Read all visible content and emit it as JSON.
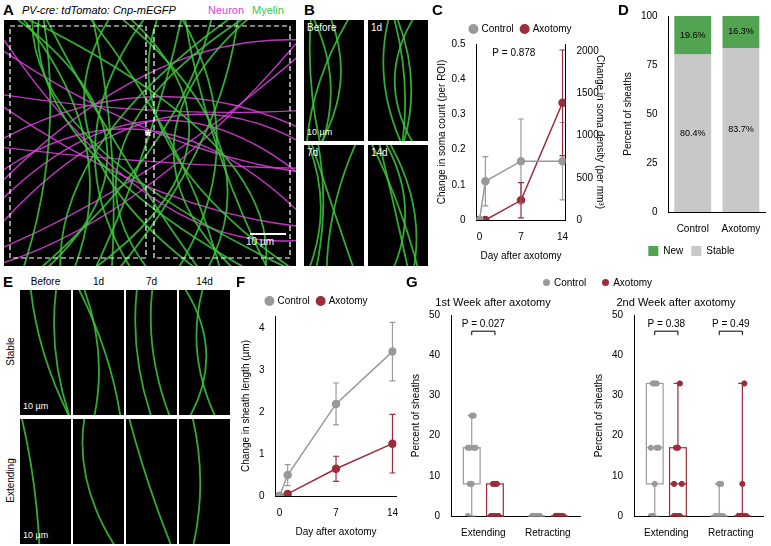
{
  "image_panels": [
    {
      "letter": "A",
      "title": "PV-cre: tdTomato: Cnp-mEGFP",
      "channels": [
        {
          "name": "Neuron",
          "color": "#e040e0"
        },
        {
          "name": "Myelin",
          "color": "#3cc83c"
        }
      ],
      "annotation": "*",
      "scale_bar": "10 µm"
    },
    {
      "letter": "B",
      "frames": [
        "Before",
        "1d",
        "7d",
        "14d"
      ],
      "scale_bar": "10 µm"
    },
    {
      "letter": "E",
      "columns": [
        "Before",
        "1d",
        "7d",
        "14d"
      ],
      "rows": [
        "Stable",
        "Extending"
      ],
      "scale_bar": "10 µm"
    }
  ],
  "chart_data": [
    {
      "letter": "C",
      "type": "line",
      "x": [
        0,
        1,
        7,
        14
      ],
      "xlim": [
        -0.5,
        14.5
      ],
      "xticks": [
        0,
        7,
        14
      ],
      "x_label": "Day after axotomy",
      "y_label": "Change in soma count (per ROI)",
      "ylim": [
        0,
        0.5
      ],
      "yticks": [
        0,
        0.1,
        0.2,
        0.3,
        0.4,
        0.5
      ],
      "y2_label": "Change in soma density (per mm³)",
      "y2lim": [
        0,
        2083
      ],
      "y2ticks": [
        0,
        500,
        1000,
        1500,
        2000
      ],
      "annotation": "P = 0.878",
      "legend": "top",
      "grid": false,
      "series": [
        {
          "name": "Control",
          "color": "#999999",
          "marker": "circle",
          "values": [
            0,
            0.11,
            0.167,
            0.167
          ],
          "errors": [
            0,
            0.07,
            0.12,
            0.11
          ]
        },
        {
          "name": "Axotomy",
          "color": "#9b2d3a",
          "marker": "circle",
          "values": [
            0,
            0,
            0.056,
            0.333
          ],
          "errors": [
            0,
            0,
            0.05,
            0.15
          ]
        }
      ]
    },
    {
      "letter": "D",
      "type": "bar",
      "stacked": true,
      "categories": [
        "Control",
        "Axotomy"
      ],
      "y_label": "Percent of sheaths",
      "ylim": [
        0,
        100
      ],
      "yticks": [
        0,
        25,
        50,
        75,
        100
      ],
      "legend": "bottom",
      "grid": false,
      "data_labels": true,
      "series": [
        {
          "name": "Stable",
          "color": "#c8c8c8",
          "values": [
            80.4,
            83.7
          ],
          "value_labels": [
            "80.4%",
            "83.7%"
          ]
        },
        {
          "name": "New",
          "color": "#52a352",
          "values": [
            19.6,
            16.3
          ],
          "value_labels": [
            "19.6%",
            "16.3%"
          ]
        }
      ]
    },
    {
      "letter": "F",
      "type": "line",
      "x": [
        0,
        1,
        7,
        14
      ],
      "xlim": [
        -0.5,
        14.5
      ],
      "xticks": [
        0,
        7,
        14
      ],
      "x_label": "Day after axotomy",
      "y_label": "Change in sheath length (µm)",
      "ylim": [
        0,
        4.3
      ],
      "yticks": [
        0,
        1,
        2,
        3,
        4
      ],
      "legend": "top",
      "grid": false,
      "series": [
        {
          "name": "Control",
          "color": "#999999",
          "marker": "circle",
          "values": [
            0,
            0.5,
            2.2,
            3.45
          ],
          "errors": [
            0,
            0.25,
            0.5,
            0.7
          ]
        },
        {
          "name": "Axotomy",
          "color": "#9b2d3a",
          "marker": "circle",
          "values": [
            0,
            0.05,
            0.65,
            1.25
          ],
          "errors": [
            0,
            0.05,
            0.3,
            0.7
          ]
        }
      ]
    },
    {
      "letter": "G",
      "type": "box",
      "title": "1st Week after axotomy",
      "categories": [
        "Extending",
        "Retracting"
      ],
      "y_label": "Percent of sheaths",
      "ylim": [
        0,
        50
      ],
      "yticks": [
        0,
        10,
        20,
        30,
        40,
        50
      ],
      "legend": "top",
      "grid": false,
      "annotations": [
        {
          "text": "P = 0.027",
          "category": "Extending"
        }
      ],
      "series": [
        {
          "name": "Control",
          "color": "#999999",
          "values": [
            [
              0,
              8,
              8,
              17,
              17,
              17,
              17,
              25,
              25
            ],
            [
              0,
              0,
              0,
              0,
              0,
              0,
              0,
              0,
              0
            ]
          ]
        },
        {
          "name": "Axotomy",
          "color": "#9b2d3a",
          "values": [
            [
              0,
              0,
              0,
              0,
              0,
              0,
              8,
              8,
              8
            ],
            [
              0,
              0,
              0,
              0,
              0,
              0,
              0,
              0,
              0
            ]
          ]
        }
      ]
    },
    {
      "type": "box",
      "title": "2nd Week after axotomy",
      "categories": [
        "Extending",
        "Retracting"
      ],
      "y_label": "Percent of sheaths",
      "ylim": [
        0,
        50
      ],
      "yticks": [
        0,
        10,
        20,
        30,
        40,
        50
      ],
      "grid": false,
      "annotations": [
        {
          "text": "P = 0.38",
          "category": "Extending"
        },
        {
          "text": "P = 0.49",
          "category": "Retracting"
        }
      ],
      "series": [
        {
          "name": "Control",
          "color": "#999999",
          "values": [
            [
              0,
              0,
              8,
              17,
              17,
              17,
              33,
              33,
              33
            ],
            [
              0,
              0,
              0,
              0,
              0,
              0,
              0,
              8,
              8
            ]
          ]
        },
        {
          "name": "Axotomy",
          "color": "#9b2d3a",
          "values": [
            [
              0,
              0,
              0,
              0,
              8,
              8,
              17,
              17,
              33
            ],
            [
              0,
              0,
              0,
              0,
              0,
              0,
              0,
              8,
              33
            ]
          ]
        }
      ]
    }
  ]
}
